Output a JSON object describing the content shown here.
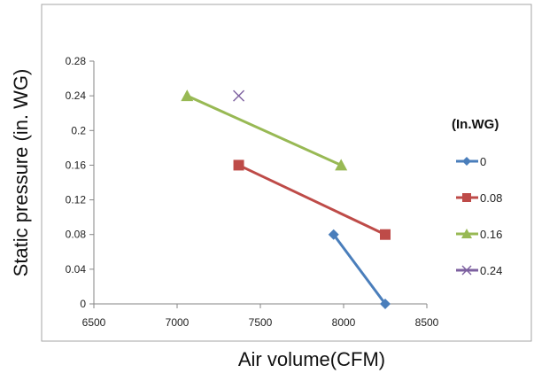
{
  "chart_data": {
    "type": "line",
    "title": "",
    "xlabel": "Air volume(CFM)",
    "ylabel": "Static pressure (in. WG)",
    "xlim": [
      6500,
      8500
    ],
    "ylim": [
      0,
      0.28
    ],
    "x_ticks": [
      "6500",
      "7000",
      "7500",
      "8000",
      "8500"
    ],
    "y_ticks": [
      "0",
      "0.04",
      "0.08",
      "0.12",
      "0.16",
      "0.2",
      "0.24",
      "0.28"
    ],
    "grid": false,
    "legend": {
      "title": "(In.WG)",
      "position": "right"
    },
    "series": [
      {
        "name": "0",
        "color": "#4a7ebb",
        "marker": "diamond",
        "points": [
          {
            "x": 7940,
            "y": 0.08
          },
          {
            "x": 8250,
            "y": 0.0
          }
        ]
      },
      {
        "name": "0.08",
        "color": "#be4b48",
        "marker": "square",
        "points": [
          {
            "x": 7370,
            "y": 0.16
          },
          {
            "x": 8250,
            "y": 0.08
          }
        ]
      },
      {
        "name": "0.16",
        "color": "#98b954",
        "marker": "triangle",
        "points": [
          {
            "x": 7060,
            "y": 0.24
          },
          {
            "x": 7985,
            "y": 0.16
          }
        ]
      },
      {
        "name": "0.24",
        "color": "#7d60a0",
        "marker": "x",
        "points": [
          {
            "x": 7370,
            "y": 0.24
          }
        ]
      }
    ]
  }
}
